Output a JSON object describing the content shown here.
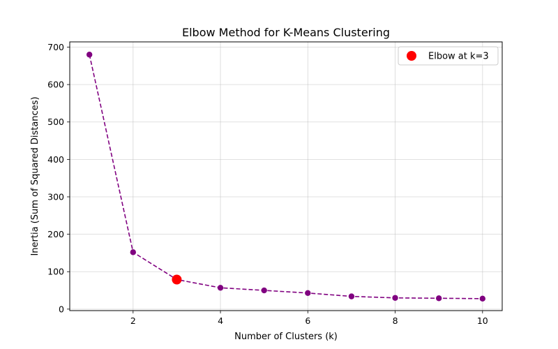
{
  "chart_data": {
    "type": "line",
    "title": "Elbow Method for K-Means Clustering",
    "xlabel": "Number of Clusters (k)",
    "ylabel": "Inertia (Sum of Squared Distances)",
    "x": [
      1,
      2,
      3,
      4,
      5,
      6,
      7,
      8,
      9,
      10
    ],
    "series": [
      {
        "values": [
          680,
          152,
          79,
          57,
          50,
          43,
          34,
          30,
          29,
          28
        ],
        "color": "#800080",
        "line_style": "dashed",
        "marker": "circle"
      }
    ],
    "highlight": {
      "label": "Elbow at k=3",
      "x": 3,
      "y": 79,
      "color": "#ff0000"
    },
    "xlim": [
      0.55,
      10.45
    ],
    "ylim": [
      -4,
      714
    ],
    "xticks": [
      2,
      4,
      6,
      8,
      10
    ],
    "yticks": [
      0,
      100,
      200,
      300,
      400,
      500,
      600,
      700
    ],
    "grid": true,
    "legend_position": "top-right"
  }
}
